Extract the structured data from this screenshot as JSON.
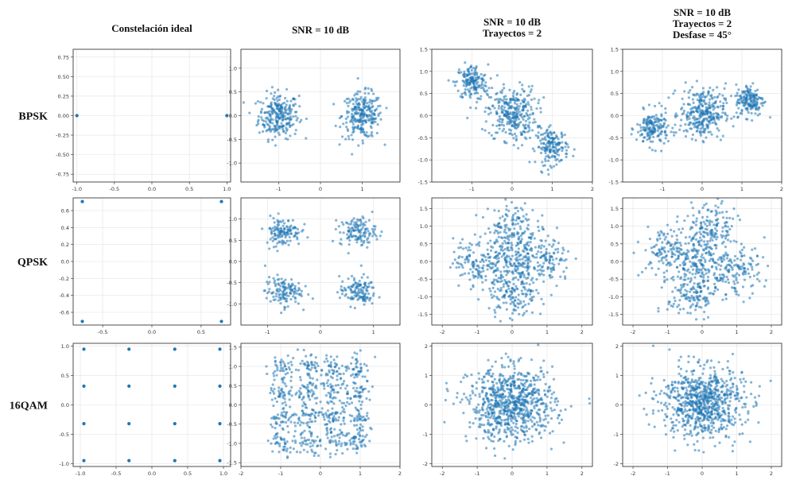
{
  "figure": {
    "column_titles": [
      [
        "Constelación ideal"
      ],
      [
        "SNR = 10 dB"
      ],
      [
        "SNR = 10 dB",
        "Trayectos = 2"
      ],
      [
        "SNR = 10 dB",
        "Trayectos = 2",
        "Desfase = 45°"
      ]
    ],
    "row_labels": [
      "BPSK",
      "QPSK",
      "16QAM"
    ]
  },
  "chart_data": [
    {
      "row": "BPSK",
      "col": "Constelación ideal",
      "type": "scatter",
      "color": "#1f77b4",
      "xlim": [
        -1.05,
        1.05
      ],
      "ylim": [
        -0.85,
        0.85
      ],
      "xticks": [
        -1.0,
        -0.5,
        0.0,
        0.5,
        1.0
      ],
      "xticklabels": [
        "-1.0",
        "-0.5",
        "0.0",
        "0.5",
        "1.0"
      ],
      "yticks": [
        0.75,
        0.5,
        0.25,
        0.0,
        -0.25,
        -0.5,
        -0.75
      ],
      "yticklabels": [
        "0.75",
        "0.50",
        "0.25",
        "0.00",
        "-0.25",
        "-0.50",
        "-0.75"
      ],
      "points": [
        [
          -1,
          0
        ],
        [
          1,
          0
        ]
      ]
    },
    {
      "row": "BPSK",
      "col": "SNR = 10 dB",
      "type": "scatter",
      "color": "#1f77b4",
      "xlim": [
        -1.9,
        1.9
      ],
      "ylim": [
        -1.4,
        1.4
      ],
      "xticks": [
        -1,
        0,
        1
      ],
      "xticklabels": [
        "-1",
        "0",
        "1"
      ],
      "yticks": [
        1.0,
        0.5,
        0.0,
        -0.5,
        -1.0
      ],
      "yticklabels": [
        "1.0",
        "0.5",
        "0.0",
        "-0.5",
        "-1.0"
      ],
      "clusters": [
        {
          "center": [
            -1,
            0
          ],
          "spread": 0.24,
          "n": 260
        },
        {
          "center": [
            1,
            0
          ],
          "spread": 0.24,
          "n": 260
        }
      ]
    },
    {
      "row": "BPSK",
      "col": "SNR = 10 dB / Trayectos = 2",
      "type": "scatter",
      "color": "#1f77b4",
      "xlim": [
        -2,
        2
      ],
      "ylim": [
        -1.5,
        1.5
      ],
      "xticks": [
        -1,
        0,
        1,
        2
      ],
      "xticklabels": [
        "-1",
        "0",
        "1",
        "2"
      ],
      "yticks": [
        1.5,
        1.0,
        0.5,
        0.0,
        -0.5,
        -1.0,
        -1.5
      ],
      "yticklabels": [
        "1.5",
        "1.0",
        "0.5",
        "0.0",
        "-0.5",
        "-1.0",
        "-1.5"
      ],
      "clusters": [
        {
          "center": [
            -1,
            0.75
          ],
          "spread": 0.2,
          "n": 170
        },
        {
          "center": [
            0,
            0.05
          ],
          "spread": 0.3,
          "n": 310
        },
        {
          "center": [
            1,
            -0.7
          ],
          "spread": 0.2,
          "n": 170
        }
      ]
    },
    {
      "row": "BPSK",
      "col": "SNR = 10 dB / Trayectos = 2 / Desfase = 45°",
      "type": "scatter",
      "color": "#1f77b4",
      "xlim": [
        -2,
        2
      ],
      "ylim": [
        -1.5,
        1.5
      ],
      "xticks": [
        -1,
        0,
        1,
        2
      ],
      "xticklabels": [
        "-1",
        "0",
        "1",
        "2"
      ],
      "yticks": [
        1.5,
        1.0,
        0.5,
        0.0,
        -0.5,
        -1.0,
        -1.5
      ],
      "yticklabels": [
        "1.5",
        "1.0",
        "0.5",
        "0.0",
        "-0.5",
        "-1.0",
        "-1.5"
      ],
      "clusters": [
        {
          "center": [
            -1.25,
            -0.3
          ],
          "spread": 0.2,
          "n": 170
        },
        {
          "center": [
            0,
            0.05
          ],
          "spread": 0.28,
          "n": 310
        },
        {
          "center": [
            1.2,
            0.35
          ],
          "spread": 0.18,
          "n": 170
        }
      ]
    },
    {
      "row": "QPSK",
      "col": "Constelación ideal",
      "type": "scatter",
      "color": "#1f77b4",
      "xlim": [
        -0.8,
        0.8
      ],
      "ylim": [
        -0.75,
        0.75
      ],
      "xticks": [
        -0.5,
        0.0,
        0.5
      ],
      "xticklabels": [
        "-0.5",
        "0.0",
        "0.5"
      ],
      "yticks": [
        0.6,
        0.4,
        0.2,
        0.0,
        -0.2,
        -0.4,
        -0.6
      ],
      "yticklabels": [
        "0.6",
        "0.4",
        "0.2",
        "0.0",
        "-0.2",
        "-0.4",
        "-0.6"
      ],
      "points": [
        [
          -0.707,
          0.707
        ],
        [
          0.707,
          0.707
        ],
        [
          -0.707,
          -0.707
        ],
        [
          0.707,
          -0.707
        ]
      ]
    },
    {
      "row": "QPSK",
      "col": "SNR = 10 dB",
      "type": "scatter",
      "color": "#1f77b4",
      "xlim": [
        -1.5,
        1.5
      ],
      "ylim": [
        -1.5,
        1.5
      ],
      "xticks": [
        -1,
        0,
        1
      ],
      "xticklabels": [
        "-1",
        "0",
        "1"
      ],
      "yticks": [
        1.0,
        0.5,
        0.0,
        -0.5,
        -1.0
      ],
      "yticklabels": [
        "1.0",
        "0.5",
        "0.0",
        "-0.5",
        "-1.0"
      ],
      "clusters": [
        {
          "center": [
            -0.707,
            0.707
          ],
          "spread": 0.17,
          "n": 130
        },
        {
          "center": [
            0.707,
            0.707
          ],
          "spread": 0.17,
          "n": 130
        },
        {
          "center": [
            -0.707,
            -0.707
          ],
          "spread": 0.17,
          "n": 130
        },
        {
          "center": [
            0.707,
            -0.707
          ],
          "spread": 0.17,
          "n": 130
        }
      ]
    },
    {
      "row": "QPSK",
      "col": "SNR = 10 dB / Trayectos = 2",
      "type": "scatter",
      "color": "#1f77b4",
      "xlim": [
        -2.3,
        2.3
      ],
      "ylim": [
        -1.8,
        1.8
      ],
      "xticks": [
        -2,
        -1,
        0,
        1,
        2
      ],
      "xticklabels": [
        "-2",
        "-1",
        "0",
        "1",
        "2"
      ],
      "yticks": [
        1.5,
        1.0,
        0.5,
        0.0,
        -0.5,
        -1.0,
        -1.5
      ],
      "yticklabels": [
        "1.5",
        "1.0",
        "0.5",
        "0.0",
        "-0.5",
        "-1.0",
        "-1.5"
      ],
      "clusters": [
        {
          "center": [
            -1.0,
            0.0
          ],
          "spread": 0.35,
          "n": 130
        },
        {
          "center": [
            0,
            1.0
          ],
          "spread": 0.35,
          "n": 130
        },
        {
          "center": [
            0,
            -1.0
          ],
          "spread": 0.35,
          "n": 130
        },
        {
          "center": [
            1.0,
            0.0
          ],
          "spread": 0.35,
          "n": 130
        },
        {
          "center": [
            0,
            0
          ],
          "spread": 0.4,
          "n": 200
        }
      ]
    },
    {
      "row": "QPSK",
      "col": "SNR = 10 dB / Trayectos = 2 / Desfase = 45°",
      "type": "scatter",
      "color": "#1f77b4",
      "xlim": [
        -2.3,
        2.3
      ],
      "ylim": [
        -1.8,
        1.8
      ],
      "xticks": [
        -2,
        -1,
        0,
        1,
        2
      ],
      "xticklabels": [
        "-2",
        "-1",
        "0",
        "1",
        "2"
      ],
      "yticks": [
        1.5,
        1.0,
        0.5,
        0.0,
        -0.5,
        -1.0,
        -1.5
      ],
      "yticklabels": [
        "1.5",
        "1.0",
        "0.5",
        "0.0",
        "-0.5",
        "-1.0",
        "-1.5"
      ],
      "clusters": [
        {
          "center": [
            -1.0,
            0.3
          ],
          "spread": 0.35,
          "n": 130
        },
        {
          "center": [
            0.3,
            1.0
          ],
          "spread": 0.35,
          "n": 130
        },
        {
          "center": [
            -0.3,
            -1.0
          ],
          "spread": 0.35,
          "n": 130
        },
        {
          "center": [
            1.0,
            -0.3
          ],
          "spread": 0.35,
          "n": 130
        },
        {
          "center": [
            0,
            0
          ],
          "spread": 0.4,
          "n": 200
        }
      ]
    },
    {
      "row": "16QAM",
      "col": "Constelación ideal",
      "type": "scatter",
      "color": "#1f77b4",
      "xlim": [
        -1.1,
        1.1
      ],
      "ylim": [
        -1.05,
        1.05
      ],
      "xticks": [
        -1.0,
        -0.5,
        0.0,
        0.5,
        1.0
      ],
      "xticklabels": [
        "-1.0",
        "-0.5",
        "0.0",
        "0.5",
        "1.0"
      ],
      "yticks": [
        1.0,
        0.5,
        0.0,
        -0.5,
        -1.0
      ],
      "yticklabels": [
        "1.0",
        "0.5",
        "0.0",
        "-0.5",
        "-1.0"
      ],
      "points": [
        [
          -0.95,
          0.95
        ],
        [
          -0.32,
          0.95
        ],
        [
          0.32,
          0.95
        ],
        [
          0.95,
          0.95
        ],
        [
          -0.95,
          0.32
        ],
        [
          -0.32,
          0.32
        ],
        [
          0.32,
          0.32
        ],
        [
          0.95,
          0.32
        ],
        [
          -0.95,
          -0.32
        ],
        [
          -0.32,
          -0.32
        ],
        [
          0.32,
          -0.32
        ],
        [
          0.95,
          -0.32
        ],
        [
          -0.95,
          -0.95
        ],
        [
          -0.32,
          -0.95
        ],
        [
          0.32,
          -0.95
        ],
        [
          0.95,
          -0.95
        ]
      ]
    },
    {
      "row": "16QAM",
      "col": "SNR = 10 dB",
      "type": "scatter",
      "color": "#1f77b4",
      "xlim": [
        -2,
        2
      ],
      "ylim": [
        -1.6,
        1.6
      ],
      "xticks": [
        -2,
        -1,
        0,
        1,
        2
      ],
      "xticklabels": [
        "-2",
        "-1",
        "0",
        "1",
        "2"
      ],
      "yticks": [
        1.5,
        1.0,
        0.5,
        0.0,
        -0.5,
        -1.0,
        -1.5
      ],
      "yticklabels": [
        "1.5",
        "1.0",
        "0.5",
        "0.0",
        "-0.5",
        "-1.0",
        "-1.5"
      ],
      "grid16": {
        "levels": [
          -0.95,
          -0.32,
          0.32,
          0.95
        ],
        "spread": 0.17,
        "n_per": 45
      }
    },
    {
      "row": "16QAM",
      "col": "SNR = 10 dB / Trayectos = 2",
      "type": "scatter",
      "color": "#1f77b4",
      "xlim": [
        -2.3,
        2.3
      ],
      "ylim": [
        -2.1,
        2.1
      ],
      "xticks": [
        -2,
        -1,
        0,
        1,
        2
      ],
      "xticklabels": [
        "-2",
        "-1",
        "0",
        "1",
        "2"
      ],
      "yticks": [
        2,
        1,
        0,
        -1,
        -2
      ],
      "yticklabels": [
        "2",
        "1",
        "0",
        "-1",
        "-2"
      ],
      "blob": {
        "center": [
          0,
          0
        ],
        "spread": 0.62,
        "n": 800
      }
    },
    {
      "row": "16QAM",
      "col": "SNR = 10 dB / Trayectos = 2 / Desfase = 45°",
      "type": "scatter",
      "color": "#1f77b4",
      "xlim": [
        -2.3,
        2.3
      ],
      "ylim": [
        -2.1,
        2.1
      ],
      "xticks": [
        -2,
        -1,
        0,
        1,
        2
      ],
      "xticklabels": [
        "-2",
        "-1",
        "0",
        "1",
        "2"
      ],
      "yticks": [
        2,
        1,
        0,
        -1,
        -2
      ],
      "yticklabels": [
        "2",
        "1",
        "0",
        "-1",
        "-2"
      ],
      "blob": {
        "center": [
          0,
          0.1
        ],
        "spread": 0.6,
        "n": 780
      }
    }
  ]
}
